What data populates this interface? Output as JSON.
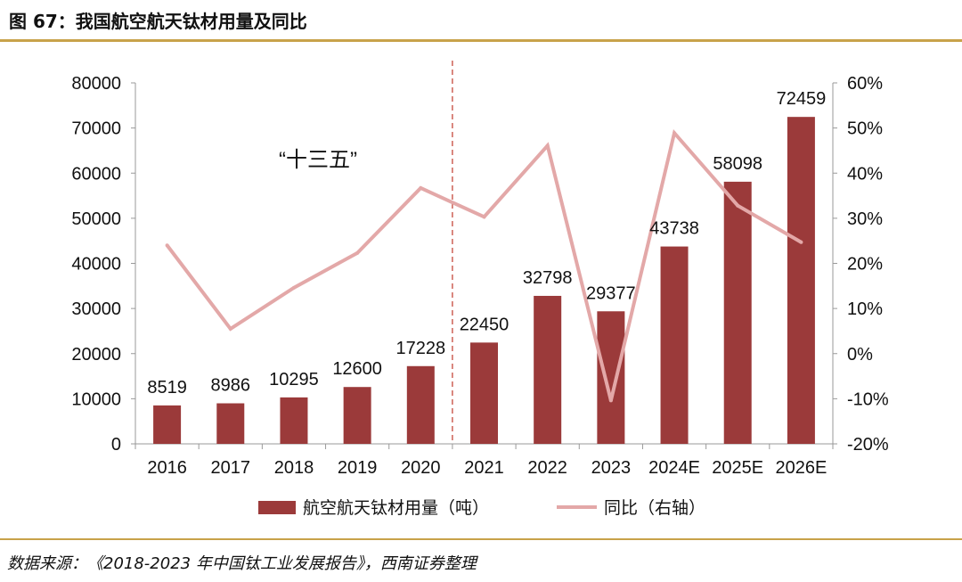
{
  "title": "图 67：我国航空航天钛材用量及同比",
  "source": "数据来源：《2018-2023 年中国钛工业发展报告》，西南证券整理",
  "annotation": "“十三五”",
  "colors": {
    "bar": "#9b3a3a",
    "line": "#e3a8a8",
    "divider": "#c0392b",
    "rule": "#c8a24a"
  },
  "chart_data": {
    "type": "bar",
    "categories": [
      "2016",
      "2017",
      "2018",
      "2019",
      "2020",
      "2021",
      "2022",
      "2023",
      "2024E",
      "2025E",
      "2026E"
    ],
    "series": [
      {
        "name": "航空航天钛材用量（吨）",
        "type": "bar",
        "axis": "left",
        "values": [
          8519,
          8986,
          10295,
          12600,
          17228,
          22450,
          32798,
          29377,
          43738,
          58098,
          72459
        ]
      },
      {
        "name": "同比（右轴）",
        "type": "line",
        "axis": "right",
        "values": [
          0.24,
          0.055,
          0.146,
          0.223,
          0.367,
          0.303,
          0.461,
          -0.104,
          0.489,
          0.328,
          0.247
        ]
      }
    ],
    "data_labels": [
      "8519",
      "8986",
      "10295",
      "12600",
      "17228",
      "22450",
      "32798",
      "29377",
      "43738",
      "58098",
      "72459"
    ],
    "y_left": {
      "min": 0,
      "max": 80000,
      "ticks": [
        "0",
        "10000",
        "20000",
        "30000",
        "40000",
        "50000",
        "60000",
        "70000",
        "80000"
      ]
    },
    "y_right": {
      "min": -0.2,
      "max": 0.6,
      "ticks": [
        "-20%",
        "-10%",
        "0%",
        "10%",
        "20%",
        "30%",
        "40%",
        "50%",
        "60%"
      ]
    },
    "legend_position": "bottom",
    "divider_after_category": "2020"
  }
}
